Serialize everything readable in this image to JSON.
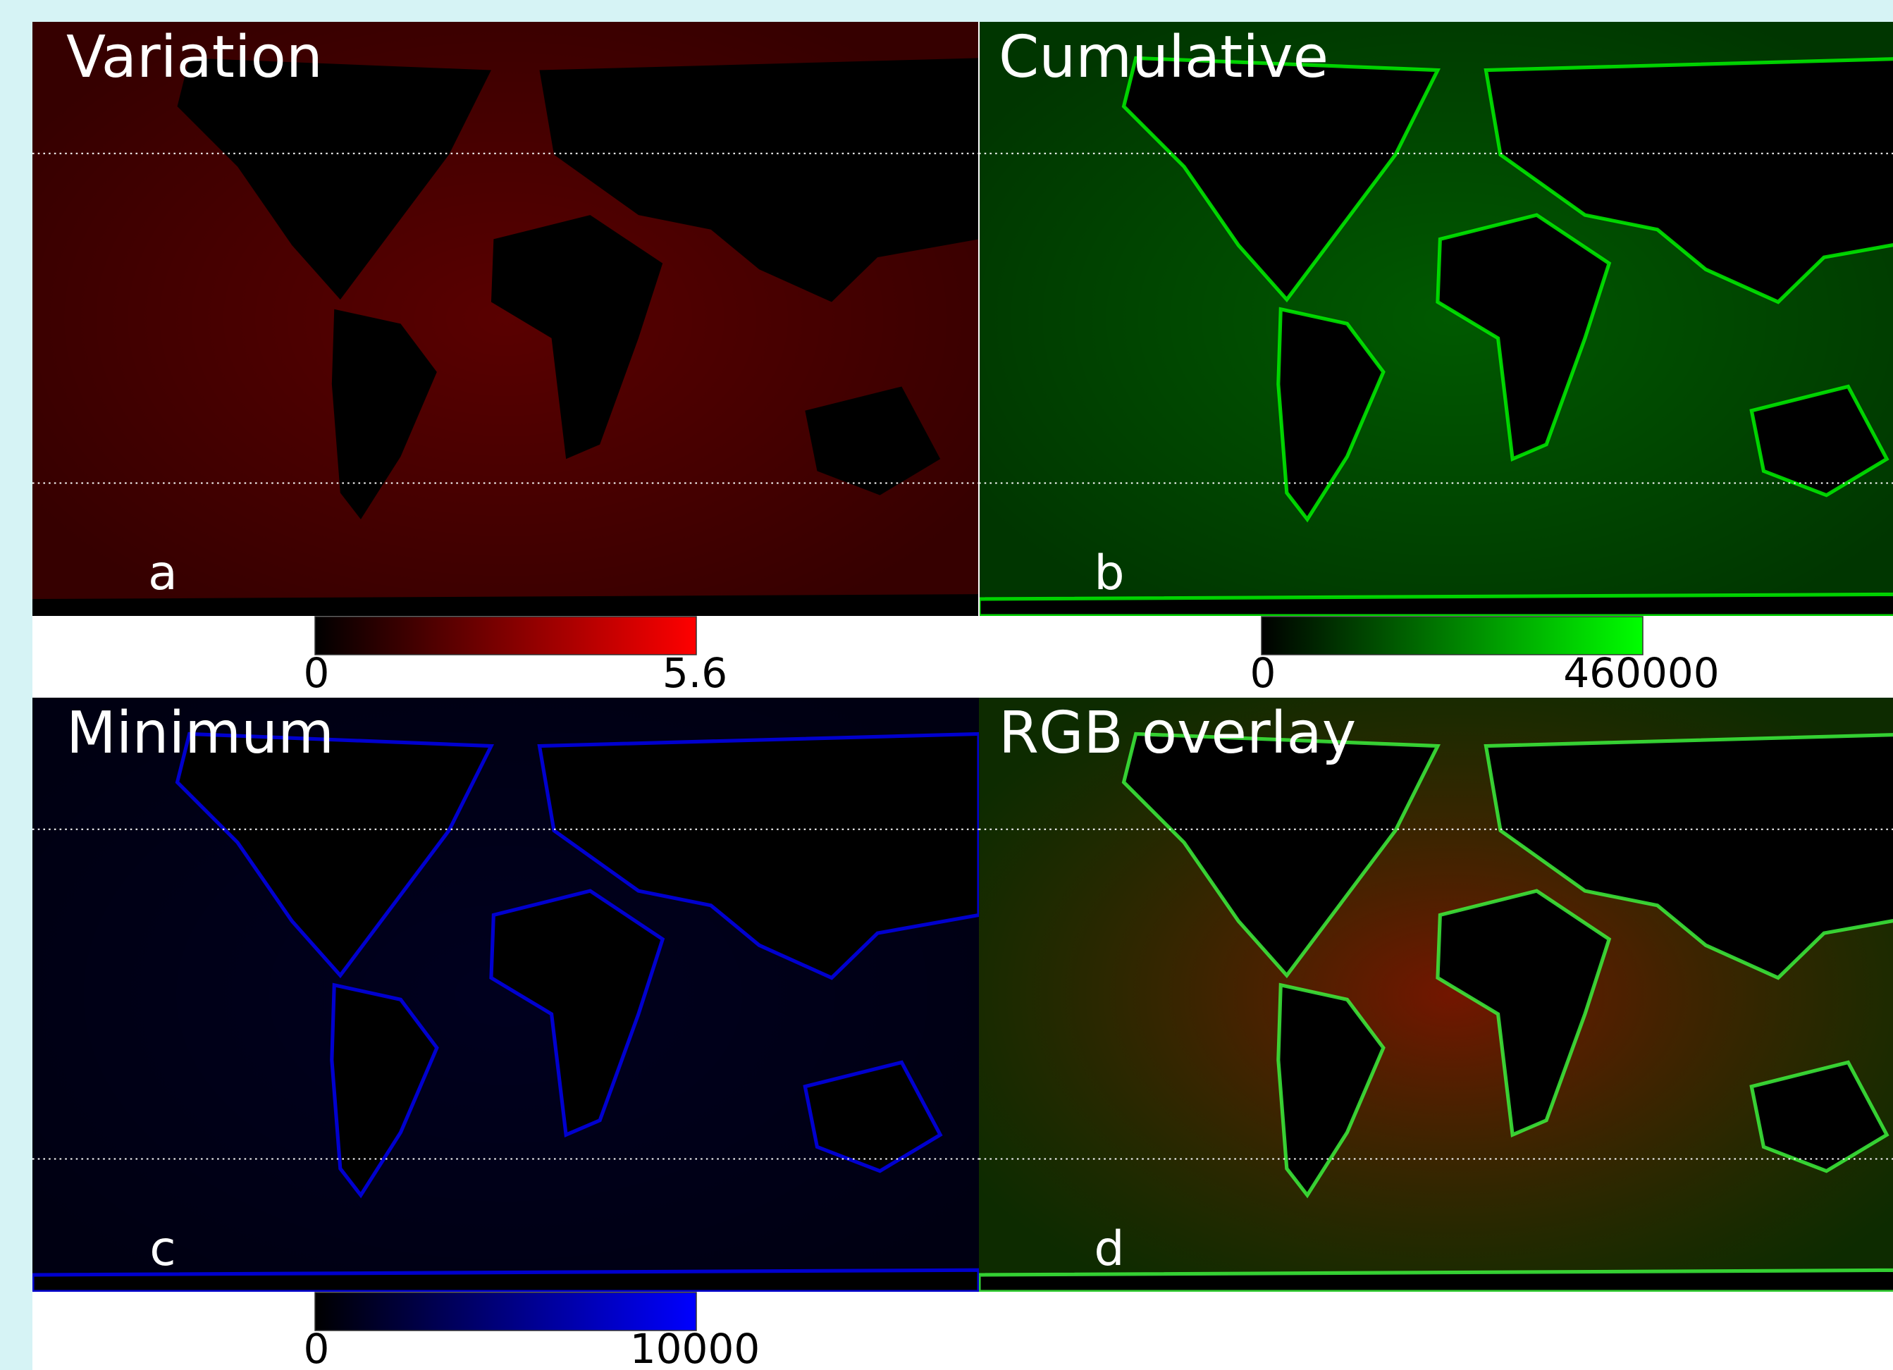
{
  "panels": [
    {
      "title": "Variation",
      "letter": "a",
      "color": "#ff0000",
      "colorbar": {
        "min": 0,
        "max": 5.6
      }
    },
    {
      "title": "Cumulative",
      "letter": "b",
      "color": "#00ff00",
      "colorbar": {
        "min": 0,
        "max": 460000
      }
    },
    {
      "title": "Minimum",
      "letter": "c",
      "color": "#0000ff",
      "colorbar": {
        "min": 0,
        "max": 10000
      }
    },
    {
      "title": "RGB overlay",
      "letter": "d"
    }
  ]
}
